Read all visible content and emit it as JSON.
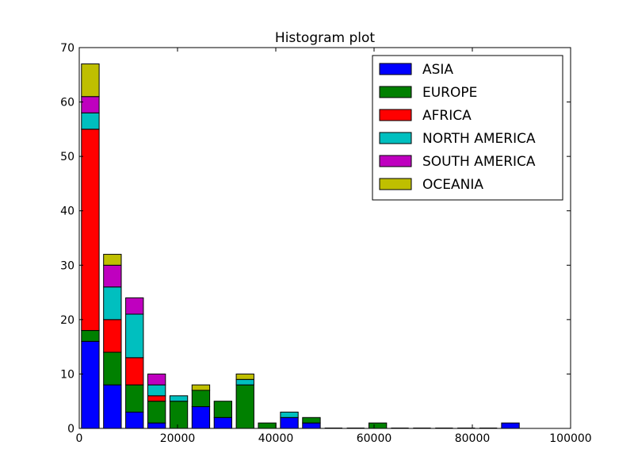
{
  "chart_data": {
    "type": "bar",
    "stacked": true,
    "title": "Histogram plot",
    "xlabel": "",
    "ylabel": "",
    "xlim": [
      0,
      100000
    ],
    "ylim": [
      0,
      70
    ],
    "xticks": [
      0,
      20000,
      40000,
      60000,
      80000,
      100000
    ],
    "yticks": [
      0,
      10,
      20,
      30,
      40,
      50,
      60,
      70
    ],
    "grid": false,
    "legend_position": "top-right",
    "bin_width": 4500,
    "bin_starts": [
      0,
      4500,
      9000,
      13500,
      18000,
      22500,
      27000,
      31500,
      36000,
      40500,
      45000,
      49500,
      54000,
      58500,
      63000,
      67500,
      72000,
      76500,
      81000,
      85500
    ],
    "series": [
      {
        "name": "ASIA",
        "color": "#0000ff",
        "values": [
          16,
          8,
          3,
          1,
          0,
          4,
          2,
          0,
          0,
          2,
          1,
          0,
          0,
          0,
          0,
          0,
          0,
          0,
          0,
          1
        ]
      },
      {
        "name": "EUROPE",
        "color": "#008000",
        "values": [
          2,
          6,
          5,
          4,
          5,
          3,
          3,
          8,
          1,
          0,
          1,
          0,
          0,
          1,
          0,
          0,
          0,
          0,
          0,
          0
        ]
      },
      {
        "name": "AFRICA",
        "color": "#ff0000",
        "values": [
          37,
          6,
          5,
          1,
          0,
          0,
          0,
          0,
          0,
          0,
          0,
          0,
          0,
          0,
          0,
          0,
          0,
          0,
          0,
          0
        ]
      },
      {
        "name": "NORTH AMERICA",
        "color": "#00bfbf",
        "values": [
          3,
          6,
          8,
          2,
          1,
          0,
          0,
          1,
          0,
          1,
          0,
          0,
          0,
          0,
          0,
          0,
          0,
          0,
          0,
          0
        ]
      },
      {
        "name": "SOUTH AMERICA",
        "color": "#bf00bf",
        "values": [
          3,
          4,
          3,
          2,
          0,
          0,
          0,
          0,
          0,
          0,
          0,
          0,
          0,
          0,
          0,
          0,
          0,
          0,
          0,
          0
        ]
      },
      {
        "name": "OCEANIA",
        "color": "#bfbf00",
        "values": [
          6,
          2,
          0,
          0,
          0,
          1,
          0,
          1,
          0,
          0,
          0,
          0,
          0,
          0,
          0,
          0,
          0,
          0,
          0,
          0
        ]
      }
    ]
  }
}
